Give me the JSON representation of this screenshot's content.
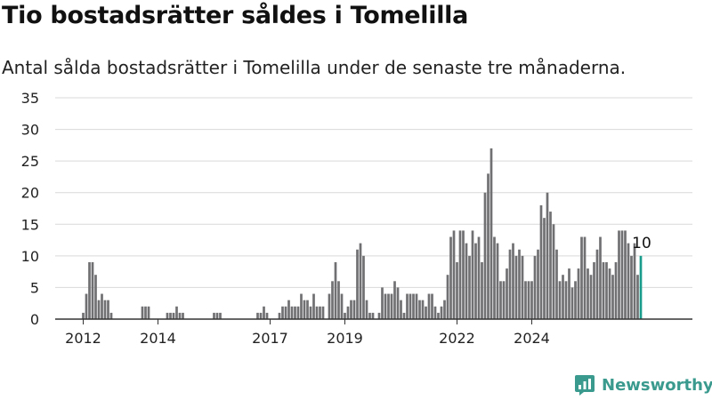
{
  "header": {
    "title": "Tio bostadsrätter såldes i Tomelilla",
    "subtitle": "Antal sålda bostadsrätter i Tomelilla under de senaste tre månaderna."
  },
  "brand": {
    "name": "Newsworthy",
    "icon": "newsworthy-chart-icon",
    "color": "#3a9a8e"
  },
  "colors": {
    "bar": "#707072",
    "highlight": "#1a9c8c",
    "grid": "#d9d9d9",
    "axis": "#333333"
  },
  "chart_data": {
    "type": "bar",
    "title": "Tio bostadsrätter såldes i Tomelilla",
    "subtitle": "Antal sålda bostadsrätter i Tomelilla under de senaste tre månaderna.",
    "xlabel": "",
    "ylabel": "",
    "ylim": [
      0,
      35
    ],
    "yticks": [
      0,
      5,
      10,
      15,
      20,
      25,
      30,
      35
    ],
    "grid": true,
    "x_ticks": [
      {
        "label": "2012",
        "x": "2012-01"
      },
      {
        "label": "2014",
        "x": "2014-01"
      },
      {
        "label": "2017",
        "x": "2017-01"
      },
      {
        "label": "2019",
        "x": "2019-01"
      },
      {
        "label": "2022",
        "x": "2022-01"
      },
      {
        "label": "2024",
        "x": "2024-01"
      }
    ],
    "start_month": "2012-01",
    "values": [
      1,
      4,
      9,
      9,
      7,
      3,
      4,
      3,
      3,
      1,
      0,
      0,
      0,
      0,
      0,
      0,
      0,
      0,
      0,
      2,
      2,
      2,
      0,
      0,
      0,
      0,
      0,
      1,
      1,
      1,
      2,
      1,
      1,
      0,
      0,
      0,
      0,
      0,
      0,
      0,
      0,
      0,
      1,
      1,
      1,
      0,
      0,
      0,
      0,
      0,
      0,
      0,
      0,
      0,
      0,
      0,
      1,
      1,
      2,
      1,
      0,
      0,
      0,
      1,
      2,
      2,
      3,
      2,
      2,
      2,
      4,
      3,
      3,
      2,
      4,
      2,
      2,
      2,
      0,
      4,
      6,
      9,
      6,
      4,
      1,
      2,
      3,
      3,
      11,
      12,
      10,
      3,
      1,
      1,
      0,
      1,
      5,
      4,
      4,
      4,
      6,
      5,
      3,
      1,
      4,
      4,
      4,
      4,
      3,
      3,
      2,
      4,
      4,
      2,
      1,
      2,
      3,
      7,
      13,
      14,
      9,
      14,
      14,
      12,
      10,
      14,
      12,
      13,
      9,
      20,
      23,
      27,
      13,
      12,
      6,
      6,
      8,
      11,
      12,
      10,
      11,
      10,
      6,
      6,
      6,
      10,
      11,
      18,
      16,
      20,
      17,
      15,
      11,
      6,
      7,
      6,
      8,
      5,
      6,
      8,
      13,
      13,
      8,
      7,
      9,
      11,
      13,
      9,
      9,
      8,
      7,
      9,
      14,
      14,
      14,
      12,
      10,
      12,
      7,
      10
    ],
    "highlight_last": true,
    "annotation": {
      "label": "10",
      "target": "last"
    }
  }
}
